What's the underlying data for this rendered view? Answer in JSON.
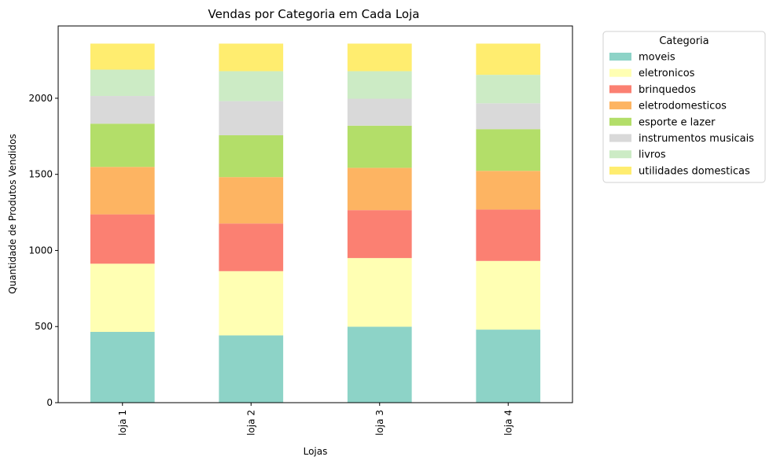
{
  "chart_data": {
    "type": "bar",
    "stacked": true,
    "title": "Vendas por Categoria em Cada Loja",
    "xlabel": "Lojas",
    "ylabel": "Quantidade de Produtos Vendidos",
    "categories": [
      "loja 1",
      "loja 2",
      "loja 3",
      "loja 4"
    ],
    "ylim": [
      0,
      2475
    ],
    "yticks": [
      0,
      500,
      1000,
      1500,
      2000
    ],
    "grid": false,
    "legend": {
      "title": "Categoria",
      "placement": "outside-right"
    },
    "series": [
      {
        "name": "moveis",
        "color": "#8dd3c7",
        "values": [
          465,
          442,
          499,
          480
        ]
      },
      {
        "name": "eletronicos",
        "color": "#ffffb3",
        "values": [
          448,
          422,
          451,
          451
        ]
      },
      {
        "name": "brinquedos",
        "color": "#fb8072",
        "values": [
          324,
          313,
          315,
          338
        ]
      },
      {
        "name": "eletrodomesticos",
        "color": "#fdb462",
        "values": [
          312,
          305,
          278,
          254
        ]
      },
      {
        "name": "esporte e lazer",
        "color": "#b3de69",
        "values": [
          284,
          275,
          277,
          274
        ]
      },
      {
        "name": "instrumentos musicais",
        "color": "#d9d9d9",
        "values": [
          182,
          224,
          177,
          170
        ]
      },
      {
        "name": "livros",
        "color": "#ccebc5",
        "values": [
          173,
          197,
          181,
          187
        ]
      },
      {
        "name": "utilidades domesticas",
        "color": "#ffed6f",
        "values": [
          171,
          181,
          181,
          205
        ]
      }
    ]
  }
}
